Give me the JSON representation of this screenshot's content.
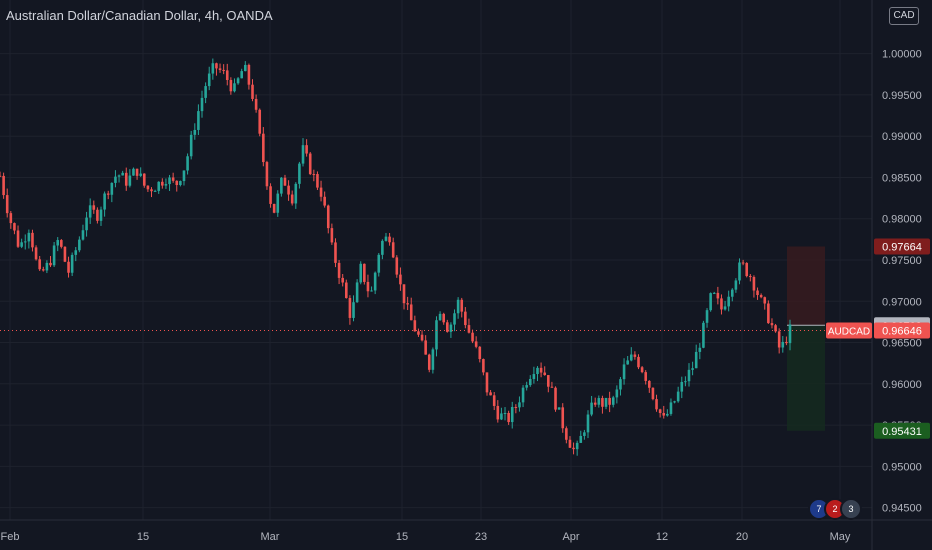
{
  "header": {
    "title": "Australian Dollar/Canadian Dollar, 4h, OANDA",
    "currency_button": "CAD"
  },
  "badges": [
    "7",
    "2",
    "3"
  ],
  "colors": {
    "background": "#131722",
    "grid": "#1e222d",
    "up": "#26a69a",
    "down": "#ef5350",
    "axis_text": "#b2b5be",
    "stop_zone": "#3a1b1f",
    "target_zone": "#15291f"
  },
  "chart_data": {
    "type": "candlestick",
    "symbol": "AUDCAD",
    "timeframe": "4h",
    "x_ticks": [
      "Feb",
      "15",
      "Mar",
      "15",
      "23",
      "Apr",
      "12",
      "20",
      "May"
    ],
    "y_ticks": [
      "1.00000",
      "0.99500",
      "0.99000",
      "0.98500",
      "0.98000",
      "0.97500",
      "0.97000",
      "0.96500",
      "0.96000",
      "0.95500",
      "0.95000",
      "0.94500"
    ],
    "ylim": [
      0.9435,
      1.0065
    ],
    "price_labels": [
      {
        "label": "",
        "value": "0.97664",
        "price": 0.97664,
        "color": "#7f1d1d"
      },
      {
        "label": "",
        "value": "0.96709",
        "price": 0.96709,
        "color": "#b2b5be"
      },
      {
        "label": "AUDCAD",
        "value": "0.96646",
        "price": 0.96646,
        "color": "#ef5350"
      },
      {
        "label": "",
        "value": "0.95431",
        "price": 0.95431,
        "color": "#1b5e20"
      }
    ],
    "current_price": 0.96646,
    "position": {
      "entry": 0.96709,
      "stop": 0.97664,
      "target": 0.95431
    },
    "close_path": [
      [
        0.9852,
        "0.9855"
      ],
      [
        0.98,
        ""
      ],
      [
        0.9765,
        ""
      ],
      [
        0.979,
        ""
      ],
      [
        0.973,
        ""
      ],
      [
        0.9745,
        ""
      ],
      [
        0.9775,
        ""
      ],
      [
        0.9735,
        ""
      ],
      [
        0.977,
        ""
      ],
      [
        0.981,
        ""
      ],
      [
        0.9805,
        ""
      ],
      [
        0.9835,
        ""
      ],
      [
        0.9855,
        ""
      ],
      [
        0.9845,
        ""
      ],
      [
        0.986,
        ""
      ],
      [
        0.9835,
        ""
      ],
      [
        0.984,
        ""
      ],
      [
        0.985,
        ""
      ],
      [
        0.984,
        ""
      ],
      [
        0.9865,
        ""
      ],
      [
        0.9915,
        ""
      ],
      [
        0.996,
        ""
      ],
      [
        0.9985,
        ""
      ],
      [
        0.9975,
        ""
      ],
      [
        0.9955,
        ""
      ],
      [
        0.9985,
        ""
      ],
      [
        0.9945,
        ""
      ],
      [
        0.987,
        ""
      ],
      [
        0.9805,
        ""
      ],
      [
        0.985,
        ""
      ],
      [
        0.9825,
        ""
      ],
      [
        0.9885,
        ""
      ],
      [
        0.9855,
        ""
      ],
      [
        0.983,
        ""
      ],
      [
        0.9765,
        ""
      ],
      [
        0.9725,
        ""
      ],
      [
        0.968,
        ""
      ],
      [
        0.974,
        ""
      ],
      [
        0.9705,
        ""
      ],
      [
        0.977,
        ""
      ],
      [
        0.978,
        ""
      ],
      [
        0.972,
        ""
      ],
      [
        0.968,
        ""
      ],
      [
        0.9655,
        ""
      ],
      [
        0.962,
        ""
      ],
      [
        0.9695,
        ""
      ],
      [
        0.9665,
        ""
      ],
      [
        0.97,
        ""
      ],
      [
        0.9665,
        ""
      ],
      [
        0.9635,
        ""
      ],
      [
        0.959,
        ""
      ],
      [
        0.9565,
        ""
      ],
      [
        0.9555,
        ""
      ],
      [
        0.9575,
        ""
      ],
      [
        0.9605,
        ""
      ],
      [
        0.9625,
        ""
      ],
      [
        0.961,
        ""
      ],
      [
        0.9575,
        ""
      ],
      [
        0.954,
        ""
      ],
      [
        0.9515,
        ""
      ],
      [
        0.955,
        ""
      ],
      [
        0.958,
        ""
      ],
      [
        0.9575,
        ""
      ],
      [
        0.958,
        ""
      ],
      [
        0.962,
        ""
      ],
      [
        0.9635,
        ""
      ],
      [
        0.9615,
        ""
      ],
      [
        0.9585,
        ""
      ],
      [
        0.9555,
        ""
      ],
      [
        0.9575,
        ""
      ],
      [
        0.96,
        ""
      ],
      [
        0.962,
        ""
      ],
      [
        0.966,
        ""
      ],
      [
        0.971,
        ""
      ],
      [
        0.969,
        ""
      ],
      [
        0.972,
        ""
      ],
      [
        0.9745,
        ""
      ],
      [
        0.973,
        ""
      ],
      [
        0.97,
        ""
      ],
      [
        0.9675,
        ""
      ],
      [
        0.964,
        ""
      ],
      [
        0.9665,
        ""
      ]
    ]
  }
}
